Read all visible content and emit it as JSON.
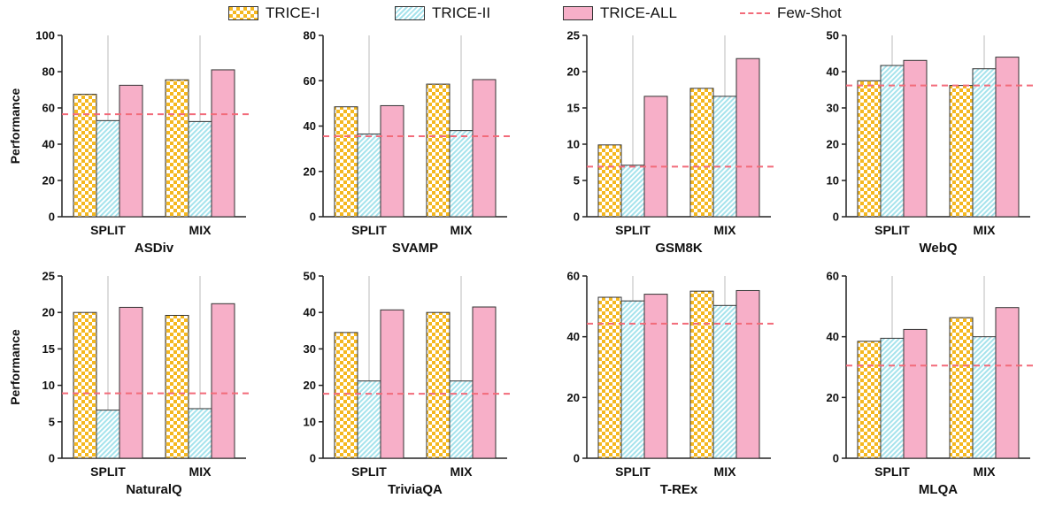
{
  "legend": [
    {
      "label": "TRICE-I",
      "pattern": "checker",
      "color": "#f5b820"
    },
    {
      "label": "TRICE-II",
      "pattern": "hatch",
      "color": "#a6e3ec"
    },
    {
      "label": "TRICE-ALL",
      "pattern": "solid",
      "color": "#f7afc8"
    },
    {
      "label": "Few-Shot",
      "pattern": "dashed-line",
      "color": "#f26b7a"
    }
  ],
  "ylabel": "Performance",
  "chart_data": [
    {
      "type": "bar",
      "title": "ASDiv",
      "categories": [
        "SPLIT",
        "MIX"
      ],
      "ylim": [
        0,
        100
      ],
      "yticks": [
        0,
        20,
        40,
        60,
        80,
        100
      ],
      "series": [
        {
          "name": "TRICE-I",
          "values": [
            67.5,
            75.5
          ]
        },
        {
          "name": "TRICE-II",
          "values": [
            53,
            52.5
          ]
        },
        {
          "name": "TRICE-ALL",
          "values": [
            72.5,
            81
          ]
        }
      ],
      "baseline": {
        "name": "Few-Shot",
        "value": 56.5
      },
      "ylabel": "Performance"
    },
    {
      "type": "bar",
      "title": "SVAMP",
      "categories": [
        "SPLIT",
        "MIX"
      ],
      "ylim": [
        0,
        80
      ],
      "yticks": [
        0,
        20,
        40,
        60,
        80
      ],
      "series": [
        {
          "name": "TRICE-I",
          "values": [
            48.5,
            58.5
          ]
        },
        {
          "name": "TRICE-II",
          "values": [
            36.5,
            38
          ]
        },
        {
          "name": "TRICE-ALL",
          "values": [
            49,
            60.5
          ]
        }
      ],
      "baseline": {
        "name": "Few-Shot",
        "value": 35.5
      }
    },
    {
      "type": "bar",
      "title": "GSM8K",
      "categories": [
        "SPLIT",
        "MIX"
      ],
      "ylim": [
        0,
        25
      ],
      "yticks": [
        0,
        5,
        10,
        15,
        20,
        25
      ],
      "series": [
        {
          "name": "TRICE-I",
          "values": [
            9.9,
            17.7
          ]
        },
        {
          "name": "TRICE-II",
          "values": [
            7.1,
            16.6
          ]
        },
        {
          "name": "TRICE-ALL",
          "values": [
            16.6,
            21.8
          ]
        }
      ],
      "baseline": {
        "name": "Few-Shot",
        "value": 6.9
      }
    },
    {
      "type": "bar",
      "title": "WebQ",
      "categories": [
        "SPLIT",
        "MIX"
      ],
      "ylim": [
        0,
        50
      ],
      "yticks": [
        0,
        10,
        20,
        30,
        40,
        50
      ],
      "series": [
        {
          "name": "TRICE-I",
          "values": [
            37.5,
            36.2
          ]
        },
        {
          "name": "TRICE-II",
          "values": [
            41.7,
            40.8
          ]
        },
        {
          "name": "TRICE-ALL",
          "values": [
            43.1,
            44
          ]
        }
      ],
      "baseline": {
        "name": "Few-Shot",
        "value": 36.2
      }
    },
    {
      "type": "bar",
      "title": "NaturalQ",
      "categories": [
        "SPLIT",
        "MIX"
      ],
      "ylim": [
        0,
        25
      ],
      "yticks": [
        0,
        5,
        10,
        15,
        20,
        25
      ],
      "series": [
        {
          "name": "TRICE-I",
          "values": [
            20,
            19.6
          ]
        },
        {
          "name": "TRICE-II",
          "values": [
            6.6,
            6.8
          ]
        },
        {
          "name": "TRICE-ALL",
          "values": [
            20.7,
            21.2
          ]
        }
      ],
      "baseline": {
        "name": "Few-Shot",
        "value": 8.9
      },
      "ylabel": "Performance"
    },
    {
      "type": "bar",
      "title": "TriviaQA",
      "categories": [
        "SPLIT",
        "MIX"
      ],
      "ylim": [
        0,
        50
      ],
      "yticks": [
        0,
        10,
        20,
        30,
        40,
        50
      ],
      "series": [
        {
          "name": "TRICE-I",
          "values": [
            34.5,
            40
          ]
        },
        {
          "name": "TRICE-II",
          "values": [
            21.2,
            21.2
          ]
        },
        {
          "name": "TRICE-ALL",
          "values": [
            40.7,
            41.5
          ]
        }
      ],
      "baseline": {
        "name": "Few-Shot",
        "value": 17.7
      }
    },
    {
      "type": "bar",
      "title": "T-REx",
      "categories": [
        "SPLIT",
        "MIX"
      ],
      "ylim": [
        0,
        60
      ],
      "yticks": [
        0,
        20,
        40,
        60
      ],
      "series": [
        {
          "name": "TRICE-I",
          "values": [
            53,
            55
          ]
        },
        {
          "name": "TRICE-II",
          "values": [
            51.8,
            50.3
          ]
        },
        {
          "name": "TRICE-ALL",
          "values": [
            54,
            55.2
          ]
        }
      ],
      "baseline": {
        "name": "Few-Shot",
        "value": 44.3
      }
    },
    {
      "type": "bar",
      "title": "MLQA",
      "categories": [
        "SPLIT",
        "MIX"
      ],
      "ylim": [
        0,
        60
      ],
      "yticks": [
        0,
        20,
        40,
        60
      ],
      "series": [
        {
          "name": "TRICE-I",
          "values": [
            38.5,
            46.3
          ]
        },
        {
          "name": "TRICE-II",
          "values": [
            39.5,
            40
          ]
        },
        {
          "name": "TRICE-ALL",
          "values": [
            42.4,
            49.6
          ]
        }
      ],
      "baseline": {
        "name": "Few-Shot",
        "value": 30.5
      }
    }
  ]
}
